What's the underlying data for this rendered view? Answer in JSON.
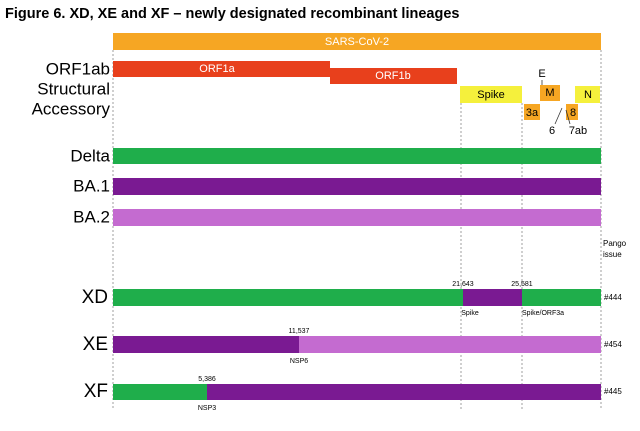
{
  "header": {
    "title": "Figure 6. XD, XE and XF – newly designated recombinant lineages"
  },
  "genome": {
    "label": "SARS-CoV-2",
    "rows": [
      "ORF1ab",
      "Structural",
      "Accessory"
    ],
    "genes": {
      "orf1a": "ORF1a",
      "orf1b": "ORF1b",
      "spike": "Spike",
      "e": "E",
      "m": "M",
      "n": "N",
      "a3": "3a",
      "g6": "6",
      "a7": "7ab",
      "g8": "8"
    }
  },
  "lineages": [
    "Delta",
    "BA.1",
    "BA.2"
  ],
  "pango_header": "Pango issue",
  "recombinants": [
    {
      "name": "XD",
      "issue": "#444",
      "breakpoints": [
        {
          "position": "21,643",
          "gene": "Spike"
        },
        {
          "position": "25,581",
          "gene": "Spike/ORF3a"
        }
      ]
    },
    {
      "name": "XE",
      "issue": "#454",
      "breakpoints": [
        {
          "position": "11,537",
          "gene": "NSP6"
        }
      ]
    },
    {
      "name": "XF",
      "issue": "#445",
      "breakpoints": [
        {
          "position": "5,386",
          "gene": "NSP3"
        }
      ]
    }
  ]
}
